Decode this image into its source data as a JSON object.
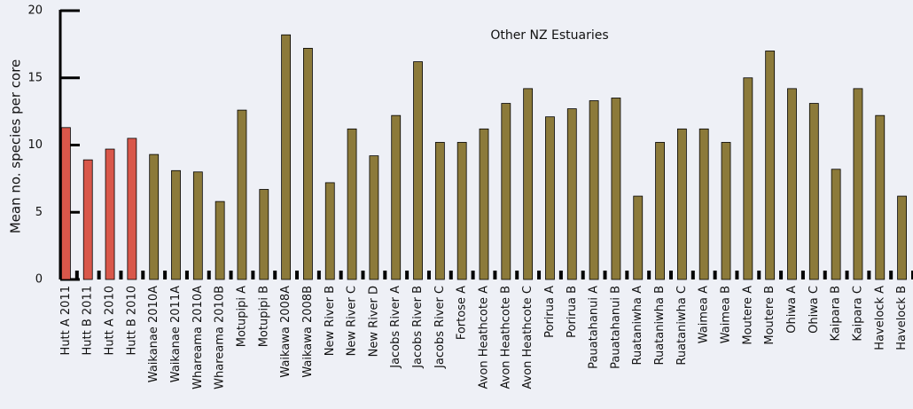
{
  "chart_data": {
    "type": "bar",
    "ylabel": "Mean no. species per core",
    "annotation": "Other NZ Estuaries",
    "categories": [
      "Hutt A 2011",
      "Hutt B 2011",
      "Hutt A 2010",
      "Hutt B 2010",
      "Waikanae 2010A",
      "Waikanae 2011A",
      "Whareama 2010A",
      "Whareama 2010B",
      "Motupipi A",
      "Motupipi B",
      "Waikawa 2008A",
      "Waikawa 2008B",
      "New River B",
      "New River C",
      "New River D",
      "Jacobs River A",
      "Jacobs River B",
      "Jacobs River C",
      "Fortose A",
      "Avon Heathcote A",
      "Avon Heathcote B",
      "Avon Heathcote C",
      "Porirua A",
      "Porirua B",
      "Pauatahanui A",
      "Pauatahanui B",
      "Ruataniwha A",
      "Ruataniwha B",
      "Ruataniwha C",
      "Waimea A",
      "Waimea B",
      "Moutere A",
      "Moutere B",
      "Ohiwa A",
      "Ohiwa C",
      "Kaipara B",
      "Kaipara C",
      "Havelock A",
      "Havelock B"
    ],
    "values": [
      11.3,
      8.9,
      9.7,
      10.5,
      9.3,
      8.1,
      8.0,
      5.8,
      12.6,
      6.7,
      18.2,
      17.2,
      7.2,
      11.2,
      9.2,
      12.2,
      16.2,
      10.2,
      10.2,
      11.2,
      13.1,
      14.2,
      12.1,
      12.7,
      13.3,
      13.5,
      6.2,
      10.2,
      11.2,
      11.2,
      10.2,
      15.0,
      17.0,
      14.2,
      13.1,
      8.2,
      14.2,
      12.2,
      6.2
    ],
    "colors": [
      "#d9574a",
      "#d9574a",
      "#d9574a",
      "#d9574a",
      "#8c7a3a",
      "#8c7a3a",
      "#8c7a3a",
      "#8c7a3a",
      "#8c7a3a",
      "#8c7a3a",
      "#8c7a3a",
      "#8c7a3a",
      "#8c7a3a",
      "#8c7a3a",
      "#8c7a3a",
      "#8c7a3a",
      "#8c7a3a",
      "#8c7a3a",
      "#8c7a3a",
      "#8c7a3a",
      "#8c7a3a",
      "#8c7a3a",
      "#8c7a3a",
      "#8c7a3a",
      "#8c7a3a",
      "#8c7a3a",
      "#8c7a3a",
      "#8c7a3a",
      "#8c7a3a",
      "#8c7a3a",
      "#8c7a3a",
      "#8c7a3a",
      "#8c7a3a",
      "#8c7a3a",
      "#8c7a3a",
      "#8c7a3a",
      "#8c7a3a",
      "#8c7a3a",
      "#8c7a3a"
    ],
    "ylim": [
      0,
      20
    ],
    "yticks": [
      0,
      5,
      10,
      15,
      20
    ],
    "grid": false
  }
}
